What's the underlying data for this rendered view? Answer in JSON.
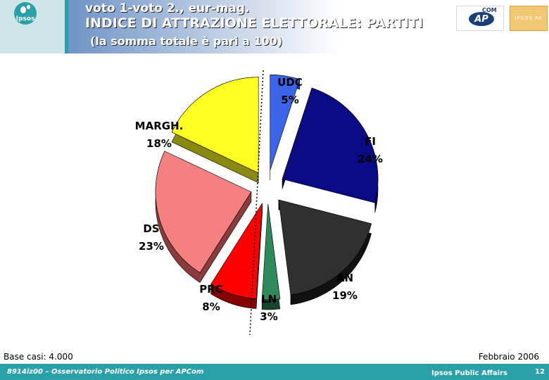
{
  "header": {
    "logo_text": "Ipsos",
    "line1": "voto 1-voto 2., eur-mag.",
    "line2": "INDICE DI ATTRAZIONE ELETTORALE: PARTITI",
    "line3": "(la somma totale è pari a 100)",
    "apcom_logo": "AP",
    "apcom_com": "COM",
    "ipsos_pa_logo": "IPSOS PA"
  },
  "chart_data": {
    "type": "pie",
    "title": "INDICE DI ATTRAZIONE ELETTORALE: PARTITI",
    "subtitle": "(la somma totale è pari a 100)",
    "unit": "%",
    "slices": [
      {
        "label": "UDC",
        "value": 5,
        "display": "5%",
        "color": "#3a64ea",
        "side": "#1e3aa0"
      },
      {
        "label": "FI",
        "value": 24,
        "display": "24%",
        "color": "#0a0a84",
        "side": "#050548"
      },
      {
        "label": "AN",
        "value": 19,
        "display": "19%",
        "color": "#303030",
        "side": "#111111"
      },
      {
        "label": "LN",
        "value": 3,
        "display": "3%",
        "color": "#2e8a5a",
        "side": "#17452d"
      },
      {
        "label": "PRC",
        "value": 8,
        "display": "8%",
        "color": "#ff0000",
        "side": "#860000"
      },
      {
        "label": "DS",
        "value": 23,
        "display": "23%",
        "color": "#f48080",
        "side": "#8a3c3c"
      },
      {
        "label": "MARGH.",
        "value": 18,
        "display": "18%",
        "color": "#ffff22",
        "side": "#8a8a10"
      }
    ]
  },
  "footer": {
    "base": "Base casi: 4.000",
    "date": "Febbraio 2006",
    "project": "8914iz00 – Osservatorio Politico Ipsos per APCom",
    "company": "Ipsos Public Affairs",
    "page": "12"
  }
}
